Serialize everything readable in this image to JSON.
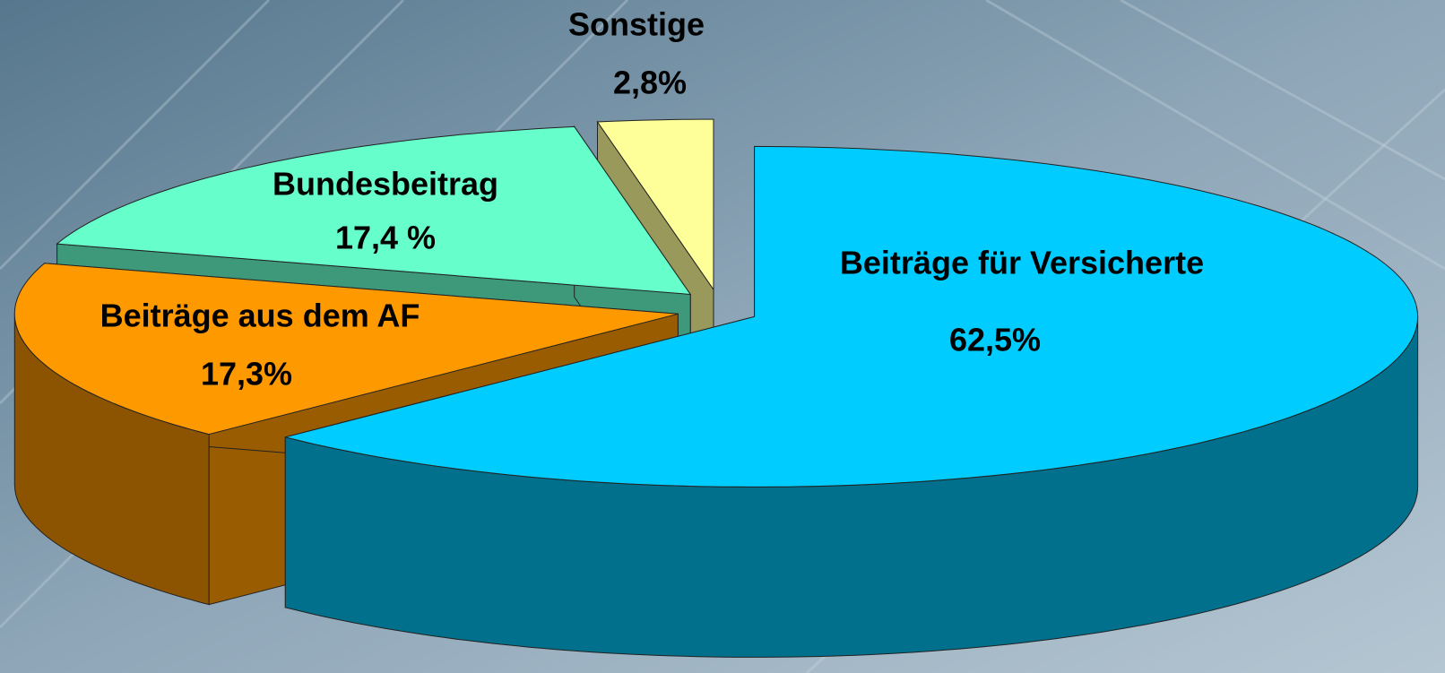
{
  "chart_data": {
    "type": "pie3d",
    "categories": [
      "Beiträge für Versicherte",
      "Beiträge aus dem AF",
      "Bundesbeitrag",
      "Sonstige"
    ],
    "values": [
      62.5,
      17.3,
      17.4,
      2.8
    ],
    "value_labels": [
      "62,5%",
      "17,3%",
      "17,4 %",
      "2,8%"
    ],
    "colors": [
      "#00ccff",
      "#ff9900",
      "#66ffcc",
      "#ffff99"
    ]
  }
}
